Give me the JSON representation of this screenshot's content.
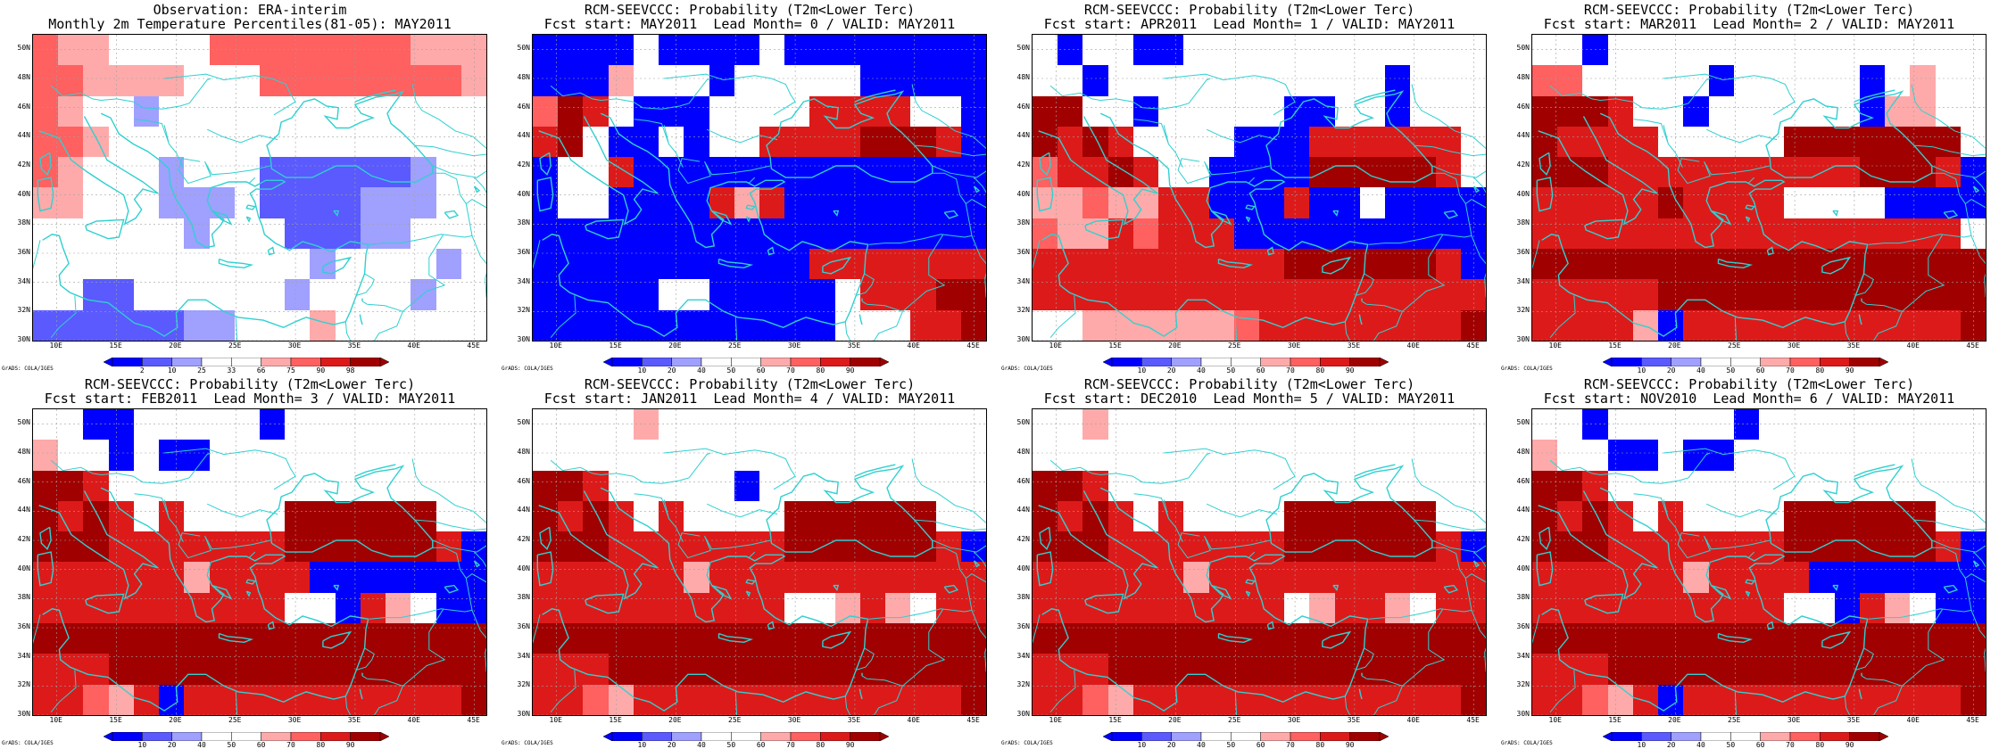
{
  "legend": {
    "observation_labels": [
      "2",
      "10",
      "25",
      "33",
      "66",
      "75",
      "90",
      "98"
    ],
    "probability_labels": [
      "10",
      "20",
      "40",
      "50",
      "60",
      "70",
      "80",
      "90"
    ]
  },
  "credit": "GrADS: COLA/IGES",
  "lat_labels": [
    "50N",
    "48N",
    "46N",
    "44N",
    "42N",
    "40N",
    "38N",
    "36N",
    "34N",
    "32N",
    "30N"
  ],
  "lon_labels": [
    "10E",
    "15E",
    "20E",
    "25E",
    "30E",
    "35E",
    "40E",
    "45E"
  ],
  "map": {
    "lon_range": [
      8,
      46
    ],
    "lat_range": [
      30,
      51
    ],
    "grid_cols": 18,
    "grid_rows": 10,
    "coastline_color": "#30d0d0",
    "grid_line_color": "#a0a0a0"
  },
  "palette": {
    "B3": "#0000ff",
    "B2": "#5a5aff",
    "B1": "#a0a0ff",
    "W": "#ffffff",
    "R1": "#ffaaaa",
    "R2": "#ff6060",
    "R3": "#dd1a1a",
    "R4": "#a00000"
  },
  "panels": [
    {
      "title1": "Observation: ERA-interim",
      "title2": "Monthly 2m Temperature Percentiles(81-05): MAY2011",
      "legend_type": "observation",
      "cells": [
        "R2 R1 R1 W  W  W  W  R2 R2 R2 R2 R2 R2 R2 R2 R1 R1 R1",
        "R2 R2 R1 R1 R1 R1 W  W  W  R2 R2 R2 R2 R2 R2 R2 R2 R1",
        "R2 R1 W  W  B1 W  W  W  W  W  W  W  W  W  W  W  W  W",
        "R2 R2 R1 W  W  W  W  W  W  W  W  W  W  W  W  W  W  W",
        "R2 R1 W  W  W  B1 W  W  W  B2 B2 B2 B2 B2 B2 B1 W  W",
        "R1 R1 W  W  W  B1 B1 B1 W  B2 B2 B2 B2 B1 B1 B1 W  W",
        "W  W  W  W  W  W  B1 W  W  W  B2 B2 B2 B1 B1 W  W  W",
        "W  W  W  W  W  W  W  W  W  W  W  B1 W  W  W  W  B1 W",
        "W  W  B2 B2 W  W  W  W  W  W  B1 W  W  W  W  B1 W  W",
        "B2 B2 B2 B2 B2 B2 B1 B1 W  W  W  R1 W  W  W  W  W  W"
      ]
    },
    {
      "title1": "RCM-SEEVCCC: Probability (T2m<Lower Terc)",
      "title2": "Fcst start: MAY2011  Lead Month= 0 / VALID: MAY2011",
      "legend_type": "probability",
      "cells": [
        "B3 B3 B3 B3 W  B3 B3 B3 B3 W  B3 B3 B3 B3 B3 B3 B3 B3",
        "B3 B3 B3 R1 W  W  W  B3 W  W  W  W  W  B3 B3 B3 B3 B3",
        "R2 R4 R3 W  B3 B3 B3 W  W  W  W  R3 R3 R3 R3 W  W  B3",
        "R3 R4 W  B3 B3 W  B3 W  W  R3 R3 R3 R3 R4 R4 R4 R3 B3",
        "B3 W  W  R3 B3 B3 B3 B3 B3 B3 B3 B3 B3 B3 B3 B3 B3 B3",
        "B3 W  W  B3 B3 B3 B3 R3 R1 R3 B3 B3 B3 B3 B3 B3 B3 B3",
        "B3 B3 B3 B3 B3 B3 B3 B3 B3 B3 B3 B3 B3 B3 B3 B3 B3 B3",
        "B3 B3 B3 B3 B3 B3 B3 B3 B3 B3 B3 R3 R3 R3 R3 R3 R3 R3",
        "B3 B3 B3 B3 B3 W  W  B3 B3 B3 B3 B3 W  R3 R3 R3 R4 R4",
        "B3 B3 B3 B3 B3 B3 B3 B3 B3 B3 B3 B3 W  W  W  R3 R3 R4"
      ]
    },
    {
      "title1": "RCM-SEEVCCC: Probability (T2m<Lower Terc)",
      "title2": "Fcst start: APR2011  Lead Month= 1 / VALID: MAY2011",
      "legend_type": "probability",
      "cells": [
        "W  B3 W  W  B3 B3 W  W  W  W  W  W  W  W  W  W  W  W",
        "W  W  B3 W  W  W  W  W  W  W  W  W  W  W  B3 W  W  W",
        "R4 R4 W  W  B3 W  W  W  W  W  B3 B3 W  W  B3 W  W  W",
        "R4 R3 R4 R3 W  W  W  W  B3 B3 B3 R3 R3 R3 R3 R3 R3 W",
        "R2 R3 R3 R4 R3 W  W  B3 B3 B3 B3 R4 R4 R4 R4 R4 R3 W",
        "R1 R1 R2 R1 R1 R3 R3 B3 B3 B3 R3 B3 B3 W  B3 B3 B3 B3",
        "R2 R1 R1 R3 R2 R3 R3 R3 B3 B3 B3 B3 B3 B3 B3 B3 B3 B3",
        "R3 R3 R3 R3 R3 R3 R3 R3 R3 R3 R4 R4 R4 R4 R4 R4 R3 B3",
        "R3 R3 R3 R3 R3 R3 R3 R3 R3 R3 R3 R3 R3 R3 R3 R3 R3 R3",
        "W  W  R1 R1 R1 R1 R1 R1 R2 R3 R3 R3 R3 R3 R3 R3 R3 R4"
      ]
    },
    {
      "title1": "RCM-SEEVCCC: Probability (T2m<Lower Terc)",
      "title2": "Fcst start: MAR2011  Lead Month= 2 / VALID: MAY2011",
      "legend_type": "probability",
      "cells": [
        "W  W  B3 W  W  W  W  W  W  W  W  W  W  W  W  W  W  W",
        "R2 R2 W  W  W  W  W  B3 W  W  W  W  W  B3 W  R1 W  W",
        "R4 R4 R4 R3 W  W  B3 W  W  W  W  W  W  B3 R1 R1 W  W",
        "R4 R3 R3 R3 R3 W  W  W  W  W  R4 R4 R4 R4 R4 R4 R4 W",
        "R4 R4 R4 R3 R3 R3 R3 R3 R3 R3 R3 R3 R3 R4 R4 R4 R3 B3",
        "R3 R3 R3 R3 R3 R4 R3 R3 R3 R3 W  W  W  W  B3 B3 B3 B3",
        "R3 R3 R3 R3 R3 R3 R3 R3 R3 R3 R3 R3 R3 R3 R3 R3 R3 W",
        "R4 R4 R4 R4 R4 R4 R4 R4 R4 R4 R4 R4 R4 R4 R4 R4 R4 R4",
        "R3 R3 R3 R3 R3 R4 R4 R4 R4 R4 R4 R4 R4 R4 R4 R4 R4 R4",
        "R3 R3 R3 R3 R1 B3 R3 R3 R3 R3 R3 R3 R3 R3 R3 R3 R3 R4"
      ]
    },
    {
      "title1": "RCM-SEEVCCC: Probability (T2m<Lower Terc)",
      "title2": "Fcst start: FEB2011  Lead Month= 3 / VALID: MAY2011",
      "legend_type": "probability",
      "cells": [
        "W  W  B3 B3 W  W  W  W  W  B3 W  W  W  W  W  W  W  W",
        "R1 W  W  B3 W  B3 B3 W  W  W  W  W  W  W  W  W  W  W",
        "R4 R4 R3 W  W  W  W  W  W  W  W  W  W  W  W  W  W  W",
        "R4 R3 R4 R3 W  R3 W  W  W  W  R4 R4 R4 R4 R4 R4 W  W",
        "R4 R4 R4 R3 R3 R3 R3 R3 R3 R3 R4 R4 R4 R4 R4 R4 R3 B3",
        "R3 R3 R3 R3 R3 R3 R1 R3 R3 R3 R3 B3 B3 B3 B3 B3 B3 B3",
        "R3 R3 R3 R3 R3 R3 R3 R3 R3 R3 W  W  B3 R3 R1 W  B3 B3",
        "R4 R4 R4 R4 R4 R4 R4 R4 R4 R4 R4 R4 R4 R4 R4 R4 R4 R4",
        "R3 R3 R3 R4 R4 R4 R4 R4 R4 R4 R4 R4 R4 R4 R4 R4 R4 R4",
        "R3 R3 R2 R1 R3 B3 R3 R3 R3 R3 R3 R3 R3 R3 R3 R3 R3 R4"
      ]
    },
    {
      "title1": "RCM-SEEVCCC: Probability (T2m<Lower Terc)",
      "title2": "Fcst start: JAN2011  Lead Month= 4 / VALID: MAY2011",
      "legend_type": "probability",
      "cells": [
        "W  W  W  W  R1 W  W  W  W  W  W  W  W  W  W  W  W  W",
        "W  W  W  W  W  W  W  W  W  W  W  W  W  W  W  W  W  W",
        "R4 R4 R3 W  W  W  W  W  B3 W  W  W  W  W  W  W  W  W",
        "R4 R3 R4 R3 W  R3 W  W  W  W  R4 R4 R4 R4 R4 R4 W  W",
        "R4 R4 R4 R3 R3 R3 R3 R3 R3 R3 R4 R4 R4 R4 R4 R4 R3 B3",
        "R3 R3 R3 R3 R3 R3 R1 R3 R3 R3 R3 R3 R3 R3 R3 R3 R3 R3",
        "R3 R3 R3 R3 R3 R3 R3 R3 R3 R3 W  W  R1 R3 R1 W  R3 R3",
        "R4 R4 R4 R4 R4 R4 R4 R4 R4 R4 R4 R4 R4 R4 R4 R4 R4 R4",
        "R3 R3 R3 R4 R4 R4 R4 R4 R4 R4 R4 R4 R4 R4 R4 R4 R4 R4",
        "R3 R3 R2 R1 R3 R3 R3 R3 R3 R3 R3 R3 R3 R3 R3 R3 R3 R4"
      ]
    },
    {
      "title1": "RCM-SEEVCCC: Probability (T2m<Lower Terc)",
      "title2": "Fcst start: DEC2010  Lead Month= 5 / VALID: MAY2011",
      "legend_type": "probability",
      "cells": [
        "W  W  R1 W  W  W  W  W  W  W  W  W  W  W  W  W  W  W",
        "W  W  W  W  W  W  W  W  W  W  W  W  W  W  W  W  W  W",
        "R4 R4 R3 W  W  W  W  W  W  W  W  W  W  W  W  W  W  W",
        "R4 R3 R4 R3 W  R3 W  W  W  W  R4 R4 R4 R4 R4 R4 W  W",
        "R4 R4 R4 R3 R3 R3 R3 R3 R3 R3 R4 R4 R4 R4 R4 R4 R3 B3",
        "R3 R3 R3 R3 R3 R3 R1 R3 R3 R3 R3 R3 R3 R3 R3 R3 R3 R3",
        "R3 R3 R3 R3 R3 R3 R3 R3 R3 R3 W  R1 R3 R3 R1 W  R3 R3",
        "R4 R4 R4 R4 R4 R4 R4 R4 R4 R4 R4 R4 R4 R4 R4 R4 R4 R4",
        "R3 R3 R3 R4 R4 R4 R4 R4 R4 R4 R4 R4 R4 R4 R4 R4 R4 R4",
        "R3 R3 R2 R1 R3 R3 R3 R3 R3 R3 R3 R3 R3 R3 R3 R3 R3 R4"
      ]
    },
    {
      "title1": "RCM-SEEVCCC: Probability (T2m<Lower Terc)",
      "title2": "Fcst start: NOV2010  Lead Month= 6 / VALID: MAY2011",
      "legend_type": "probability",
      "cells": [
        "W  W  B3 W  W  W  W  W  B3 W  W  W  W  W  W  W  W  W",
        "R1 W  W  B3 B3 W  B3 B3 W  W  W  W  W  W  W  W  W  W",
        "R4 R4 R3 W  W  W  W  W  W  W  W  W  W  W  W  W  W  W",
        "R4 R3 R4 R3 W  R3 W  W  W  W  R4 R4 R4 R4 R4 R4 W  W",
        "R4 R4 R4 R3 R3 R3 R3 R3 R3 R3 R4 R4 R4 R4 R4 R4 R3 B3",
        "R3 R3 R3 R3 R3 R3 R1 R3 R3 R3 R3 B3 B3 B3 B3 B3 B3 B3",
        "R3 R3 R3 R3 R3 R3 R3 R3 R3 R3 W  W  B3 R3 R1 W  B3 B3",
        "R4 R4 R4 R4 R4 R4 R4 R4 R4 R4 R4 R4 R4 R4 R4 R4 R4 R4",
        "R3 R3 R3 R4 R4 R4 R4 R4 R4 R4 R4 R4 R4 R4 R4 R4 R4 R4",
        "R3 R3 R2 R1 R3 B3 R3 R3 R3 R3 R3 R3 R3 R3 R3 R3 R3 R4"
      ]
    }
  ]
}
